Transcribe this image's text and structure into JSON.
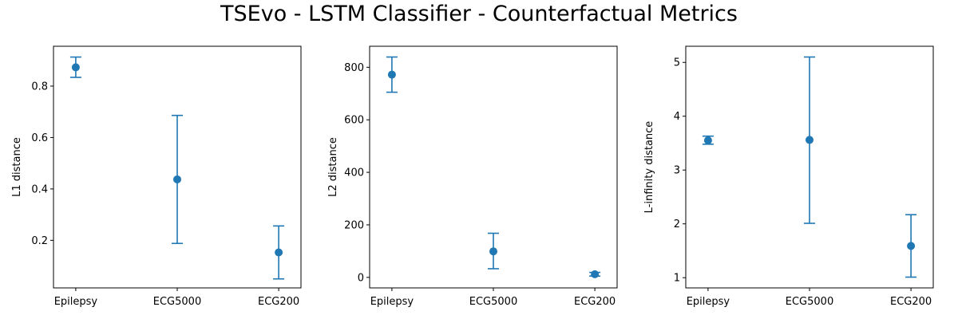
{
  "figure_title": "TSEvo - LSTM Classifier - Counterfactual Metrics",
  "colors": {
    "series": "#1f77b4",
    "axes": "#000000",
    "background": "#ffffff"
  },
  "chart_data": [
    {
      "type": "scatter",
      "style": "points with vertical error bars and caps",
      "categories": [
        "Epilepsy",
        "ECG5000",
        "ECG200"
      ],
      "ylabel": "L1 distance",
      "xlabel": "",
      "ylim": [
        0.015,
        0.955
      ],
      "yticks": [
        0.2,
        0.4,
        0.6,
        0.8
      ],
      "ytick_labels": [
        "0.2",
        "0.4",
        "0.6",
        "0.8"
      ],
      "values": [
        0.873,
        0.437,
        0.153
      ],
      "err_low": [
        0.834,
        0.188,
        0.05
      ],
      "err_high": [
        0.913,
        0.686,
        0.256
      ],
      "grid": false,
      "legend": "none"
    },
    {
      "type": "scatter",
      "style": "points with vertical error bars and caps",
      "categories": [
        "Epilepsy",
        "ECG5000",
        "ECG200"
      ],
      "ylabel": "L2 distance",
      "xlabel": "",
      "ylim": [
        -40,
        880
      ],
      "yticks": [
        0,
        200,
        400,
        600,
        800
      ],
      "ytick_labels": [
        "0",
        "200",
        "400",
        "600",
        "800"
      ],
      "values": [
        772,
        99,
        12
      ],
      "err_low": [
        705,
        33,
        5
      ],
      "err_high": [
        839,
        168,
        19
      ],
      "grid": false,
      "legend": "none"
    },
    {
      "type": "scatter",
      "style": "points with vertical error bars and caps",
      "categories": [
        "Epilepsy",
        "ECG5000",
        "ECG200"
      ],
      "ylabel": "L-infinity distance",
      "xlabel": "",
      "ylim": [
        0.81,
        5.3
      ],
      "yticks": [
        1,
        2,
        3,
        4,
        5
      ],
      "ytick_labels": [
        "1",
        "2",
        "3",
        "4",
        "5"
      ],
      "values": [
        3.55,
        3.56,
        1.59
      ],
      "err_low": [
        3.48,
        2.01,
        1.01
      ],
      "err_high": [
        3.63,
        5.1,
        2.17
      ],
      "grid": false,
      "legend": "none"
    }
  ]
}
